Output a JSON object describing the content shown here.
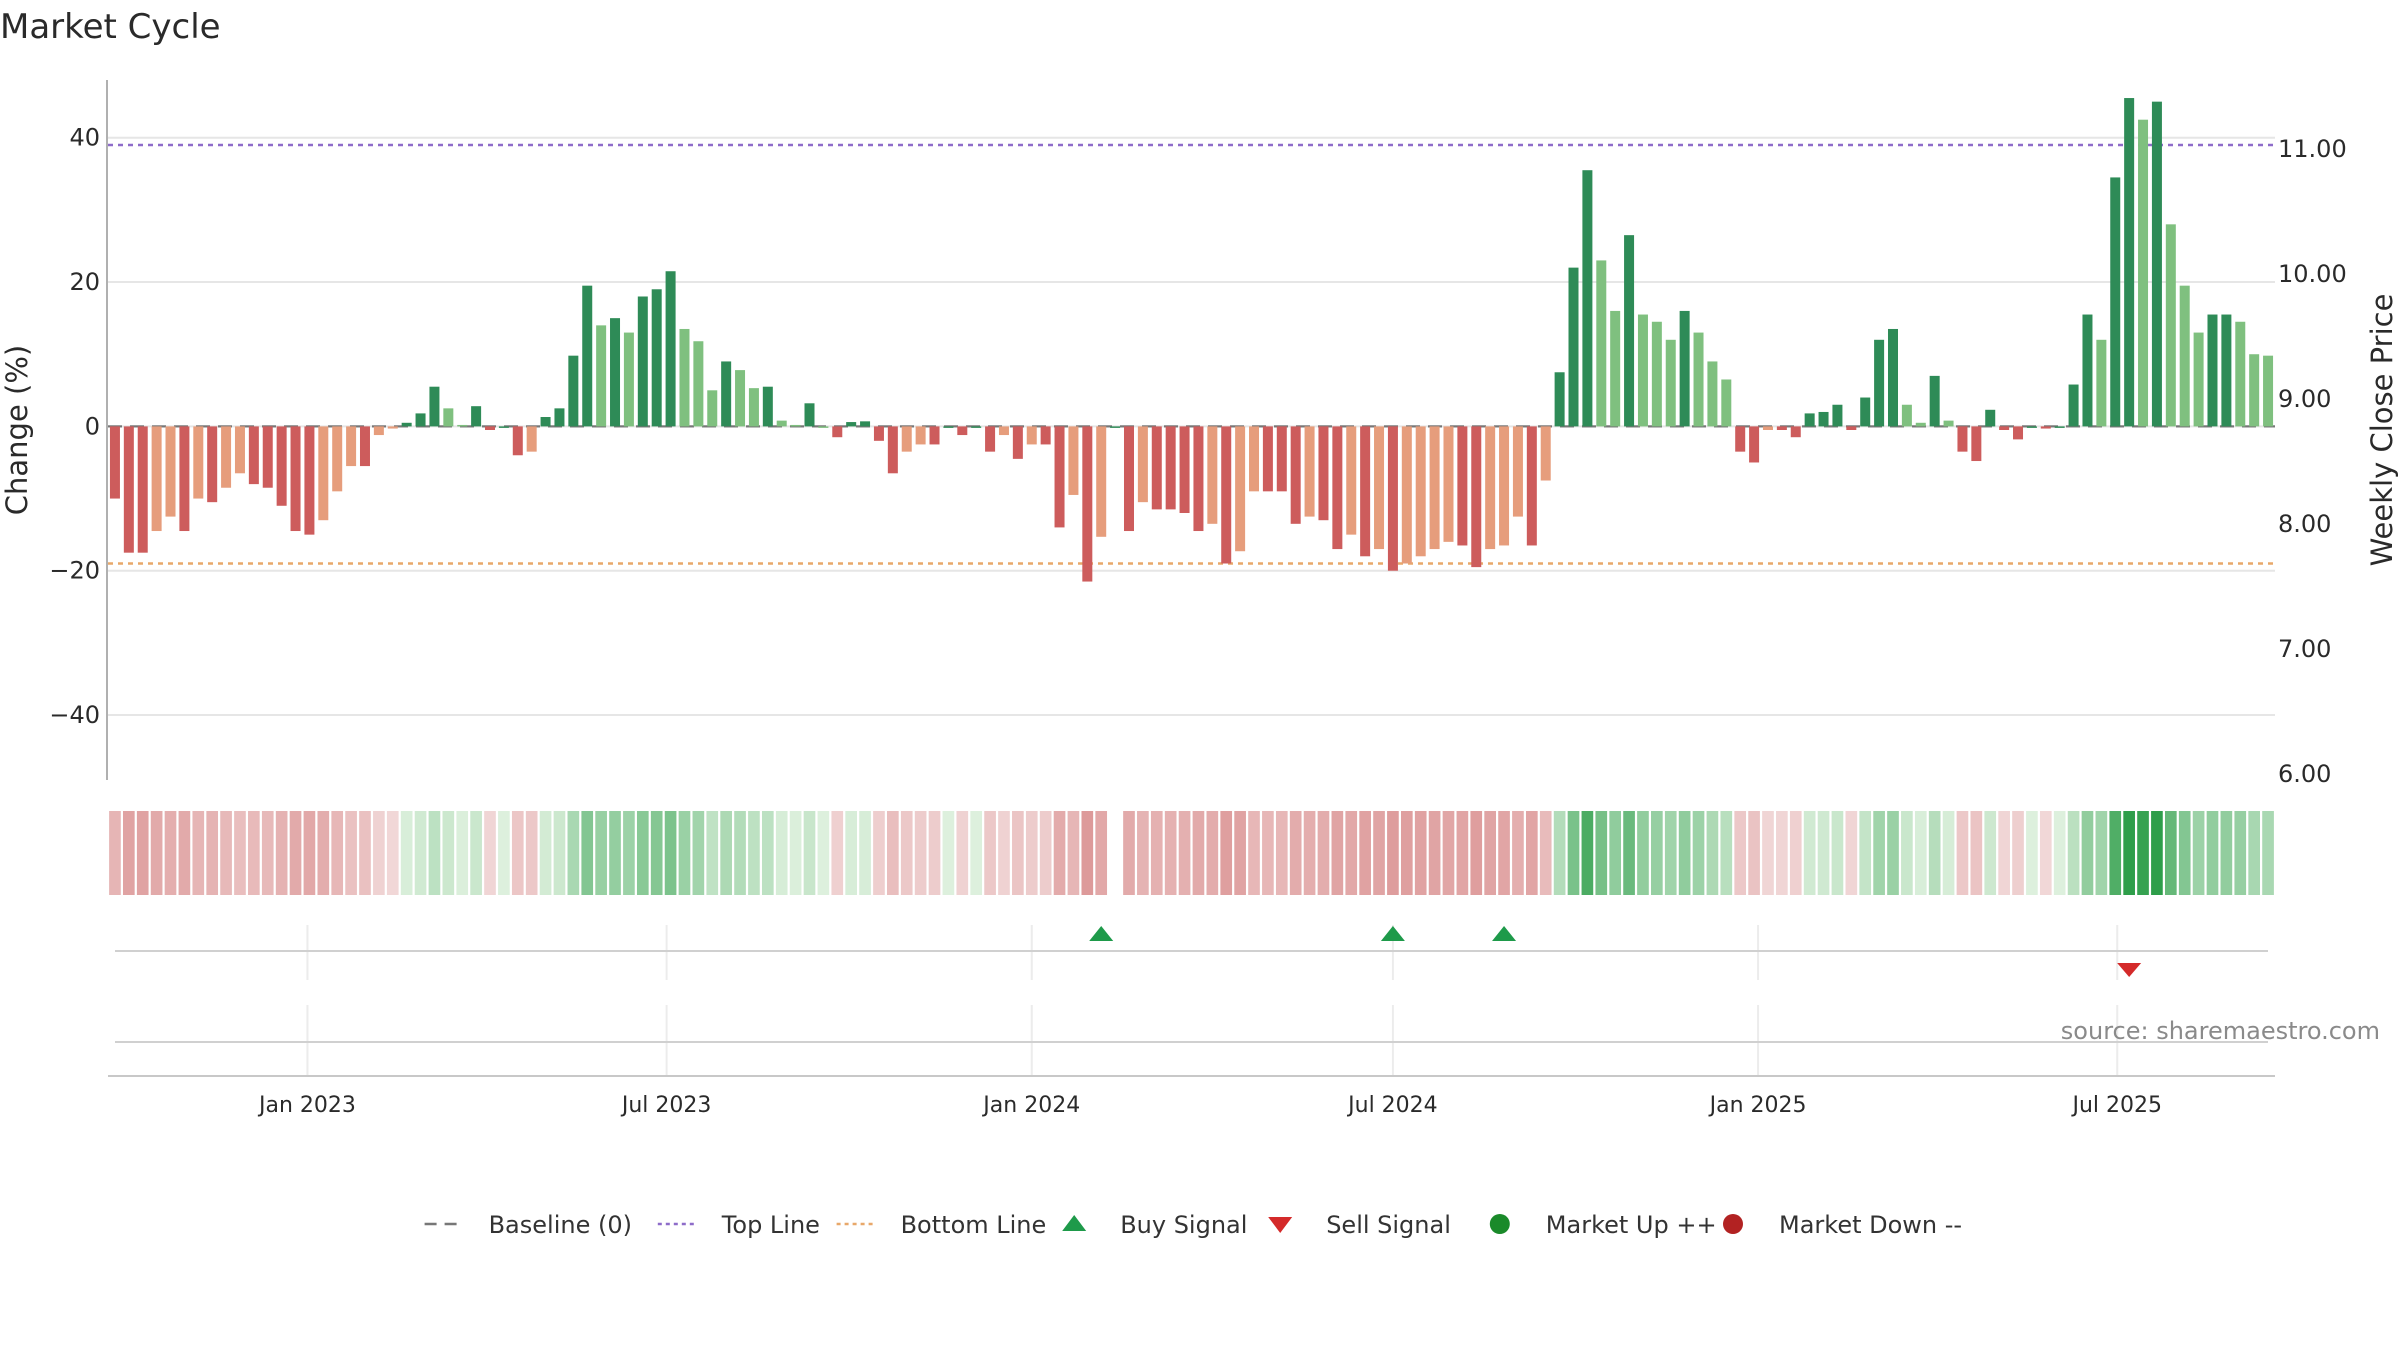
{
  "chart_data": {
    "type": "bar",
    "title": "Market Cycle",
    "ylabel": "Change (%)",
    "y2label": "Weekly Close Price",
    "ylim": [
      -49,
      48
    ],
    "y2lim": [
      5.95,
      11.55
    ],
    "yticks": [
      40,
      20,
      0,
      -20,
      -40
    ],
    "yticklabels": [
      "40",
      "20",
      "0",
      "−20",
      "−40"
    ],
    "y2ticks": [
      11,
      10,
      9,
      8,
      7,
      6
    ],
    "y2ticklabels": [
      "11.00",
      "10.00",
      "9.00",
      "8.00",
      "7.00",
      "6.00"
    ],
    "xstart": "2022-09-26",
    "week_interval_days": 7,
    "xticks": [
      "2023-01-01",
      "2023-07-01",
      "2024-01-01",
      "2024-07-01",
      "2025-01-01",
      "2025-07-01"
    ],
    "xticklabels": [
      "Jan 2023",
      "Jul 2023",
      "Jan 2024",
      "Jul 2024",
      "Jan 2025",
      "Jul 2025"
    ],
    "change_pct": [
      -10,
      -17.5,
      -17.5,
      -14.5,
      -12.5,
      -14.5,
      -10,
      -10.5,
      -8.5,
      -6.5,
      -8,
      -8.5,
      -11,
      -14.5,
      -15,
      -13,
      -9,
      -5.5,
      -5.5,
      -1.2,
      -0.3,
      0.5,
      1.8,
      5.5,
      2.5,
      0.2,
      2.8,
      -0.5,
      0,
      -4,
      -3.5,
      1.3,
      2.5,
      9.8,
      19.5,
      14,
      15,
      13,
      18,
      19,
      21.5,
      13.5,
      11.8,
      5,
      9,
      7.8,
      5.3,
      5.5,
      0.8,
      0.2,
      3.2,
      0,
      -1.5,
      0.6,
      0.7,
      -2,
      -6.5,
      -3.5,
      -2.5,
      -2.5,
      0,
      -1.2,
      0,
      -3.5,
      -1.2,
      -4.5,
      -2.5,
      -2.5,
      -14,
      -9.5,
      -21.5,
      -15.3,
      0,
      -14.5,
      -10.5,
      -11.5,
      -11.5,
      -12,
      -14.5,
      -13.5,
      -19,
      -17.3,
      -9,
      -9,
      -9,
      -13.5,
      -12.5,
      -13,
      -17,
      -15,
      -18,
      -17,
      -20,
      -19,
      -18,
      -17,
      -16,
      -16.5,
      -19.5,
      -17,
      -16.5,
      -12.5,
      -16.5,
      -7.5,
      7.5,
      22,
      35.5,
      23,
      16,
      26.5,
      15.5,
      14.5,
      12,
      16,
      13,
      9,
      6.5,
      -3.5,
      -5,
      -0.5,
      -0.5,
      -1.5,
      1.8,
      2,
      3,
      -0.5,
      4,
      12,
      13.5,
      3,
      0.5,
      7,
      0.8,
      -3.5,
      -4.8,
      2.3,
      -0.5,
      -1.8,
      0,
      -0.3,
      0,
      5.8,
      15.5,
      12,
      34.5,
      45.5,
      42.5,
      45,
      28,
      19.5,
      13,
      15.5,
      15.5,
      14.5,
      10,
      9.8
    ],
    "buy_signals": [
      "2024-02-05",
      "2024-07-01",
      "2024-08-26"
    ],
    "sell_signals": [
      "2025-07-07"
    ],
    "regime_gap_week": 72,
    "reference_lines": [
      {
        "name": "Baseline (0)",
        "value": 0,
        "style": "dashed",
        "color": "#777777"
      },
      {
        "name": "Top Line",
        "value": 39,
        "style": "dotted",
        "color": "#8e6cc9"
      },
      {
        "name": "Bottom Line",
        "value": -19,
        "style": "dotted",
        "color": "#e8a86a"
      }
    ],
    "colors": {
      "up_strong": "#2e8b57",
      "up_light": "#7fc07f",
      "down_strong": "#cd5c5c",
      "down_light": "#e69d7c",
      "buy": "#1e9a4a",
      "sell": "#d42a2a",
      "market_up": "#1a8a2a",
      "market_down": "#b22222"
    },
    "legend": [
      {
        "label": "Baseline (0)",
        "kind": "dashed-line",
        "color": "#777777"
      },
      {
        "label": "Top Line",
        "kind": "dotted-line",
        "color": "#8e6cc9"
      },
      {
        "label": "Bottom Line",
        "kind": "dotted-line",
        "color": "#e8a86a"
      },
      {
        "label": "Buy Signal",
        "kind": "triangle-up",
        "color": "#1e9a4a"
      },
      {
        "label": "Sell Signal",
        "kind": "triangle-down",
        "color": "#d42a2a"
      },
      {
        "label": "Market Up ++",
        "kind": "dot",
        "color": "#1a8a2a"
      },
      {
        "label": "Market Down --",
        "kind": "dot",
        "color": "#b22222"
      }
    ],
    "legend_position": "bottom-center",
    "grid": true,
    "source": "source: sharemaestro.com"
  }
}
